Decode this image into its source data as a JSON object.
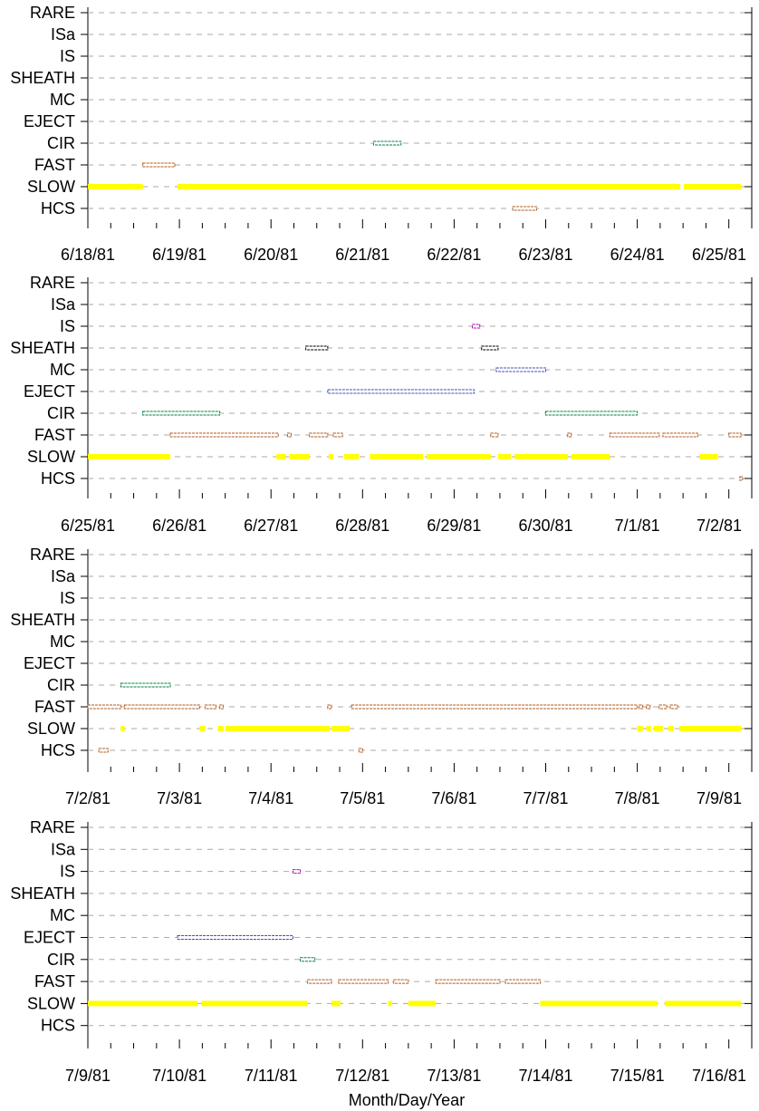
{
  "chart_data": {
    "type": "timeline",
    "xlabel": "Month/Day/Year",
    "categories": [
      "RARE",
      "ISa",
      "IS",
      "SHEATH",
      "MC",
      "EJECT",
      "CIR",
      "FAST",
      "SLOW",
      "HCS"
    ],
    "colors": {
      "SLOW": "#ffff00",
      "FAST": "#b05a1e",
      "CIR": "#008040",
      "EJECT": "#4050b0",
      "MC": "#4050b0",
      "SHEATH": "#000000",
      "IS": "#b000b0",
      "ISa": "#b000b0",
      "RARE": "#000000",
      "HCS": "#b05a1e"
    },
    "panels": [
      {
        "xlim": [
          "6/18/81",
          "6/25/81"
        ],
        "ticks": [
          "6/18/81",
          "6/19/81",
          "6/20/81",
          "6/21/81",
          "6/22/81",
          "6/23/81",
          "6/24/81",
          "6/25/81"
        ],
        "events": {
          "SLOW": [
            [
              0.0,
              0.6
            ],
            [
              0.98,
              6.47
            ],
            [
              6.51,
              7.15
            ]
          ],
          "FAST": [
            [
              0.6,
              0.95
            ]
          ],
          "CIR": [
            [
              3.12,
              3.42
            ]
          ],
          "HCS": [
            [
              4.64,
              4.9
            ]
          ]
        }
      },
      {
        "xlim": [
          "6/25/81",
          "7/2/81"
        ],
        "ticks": [
          "6/25/81",
          "6/26/81",
          "6/27/81",
          "6/28/81",
          "6/29/81",
          "6/30/81",
          "7/1/81",
          "7/2/81"
        ],
        "events": {
          "SLOW": [
            [
              0.0,
              0.9
            ],
            [
              2.06,
              2.16
            ],
            [
              2.2,
              2.42
            ],
            [
              2.63,
              2.68
            ],
            [
              2.8,
              2.96
            ],
            [
              3.08,
              3.66
            ],
            [
              3.7,
              4.4
            ],
            [
              4.48,
              4.62
            ],
            [
              4.66,
              5.24
            ],
            [
              5.28,
              5.7
            ],
            [
              6.68,
              6.88
            ]
          ],
          "FAST": [
            [
              0.9,
              2.08
            ],
            [
              2.18,
              2.22
            ],
            [
              2.42,
              2.62
            ],
            [
              2.68,
              2.78
            ],
            [
              4.4,
              4.48
            ],
            [
              5.24,
              5.28
            ],
            [
              5.7,
              6.24
            ],
            [
              6.28,
              6.66
            ],
            [
              7.0,
              7.15
            ]
          ],
          "CIR": [
            [
              0.6,
              1.44
            ],
            [
              5.0,
              6.0
            ]
          ],
          "EJECT": [
            [
              2.62,
              4.22
            ]
          ],
          "MC": [
            [
              4.46,
              5.0
            ]
          ],
          "SHEATH": [
            [
              2.38,
              2.62
            ],
            [
              4.3,
              4.48
            ]
          ],
          "IS": [
            [
              4.2,
              4.28
            ]
          ],
          "HCS": [
            [
              7.12,
              7.16
            ]
          ]
        }
      },
      {
        "xlim": [
          "7/2/81",
          "7/9/81"
        ],
        "ticks": [
          "7/2/81",
          "7/3/81",
          "7/4/81",
          "7/5/81",
          "7/6/81",
          "7/7/81",
          "7/8/81",
          "7/9/81"
        ],
        "events": {
          "SLOW": [
            [
              0.36,
              0.4
            ],
            [
              1.22,
              1.28
            ],
            [
              1.42,
              1.48
            ],
            [
              1.5,
              2.64
            ],
            [
              2.66,
              2.86
            ],
            [
              6.0,
              6.06
            ],
            [
              6.1,
              6.15
            ],
            [
              6.18,
              6.28
            ],
            [
              6.34,
              6.4
            ],
            [
              6.46,
              7.15
            ]
          ],
          "FAST": [
            [
              0.0,
              0.36
            ],
            [
              0.4,
              1.22
            ],
            [
              1.28,
              1.4
            ],
            [
              1.44,
              1.48
            ],
            [
              2.62,
              2.66
            ],
            [
              2.88,
              6.0
            ],
            [
              6.02,
              6.06
            ],
            [
              6.1,
              6.14
            ],
            [
              6.24,
              6.32
            ],
            [
              6.36,
              6.44
            ]
          ],
          "CIR": [
            [
              0.36,
              0.9
            ]
          ],
          "HCS": [
            [
              0.12,
              0.22
            ],
            [
              2.96,
              3.0
            ]
          ]
        }
      },
      {
        "xlim": [
          "7/9/81",
          "7/16/81"
        ],
        "ticks": [
          "7/9/81",
          "7/10/81",
          "7/11/81",
          "7/12/81",
          "7/13/81",
          "7/14/81",
          "7/15/81",
          "7/16/81"
        ],
        "events": {
          "SLOW": [
            [
              0.0,
              1.2
            ],
            [
              1.24,
              2.4
            ],
            [
              2.66,
              2.76
            ],
            [
              3.28,
              3.32
            ],
            [
              3.5,
              3.8
            ],
            [
              4.94,
              6.22
            ],
            [
              6.3,
              7.15
            ]
          ],
          "FAST": [
            [
              2.4,
              2.66
            ],
            [
              2.74,
              3.28
            ],
            [
              3.34,
              3.5
            ],
            [
              3.8,
              4.5
            ],
            [
              4.56,
              4.94
            ]
          ],
          "CIR": [
            [
              2.32,
              2.48
            ]
          ],
          "EJECT": [
            [
              0.98,
              2.24
            ]
          ],
          "IS": [
            [
              2.24,
              2.32
            ]
          ]
        }
      }
    ]
  }
}
